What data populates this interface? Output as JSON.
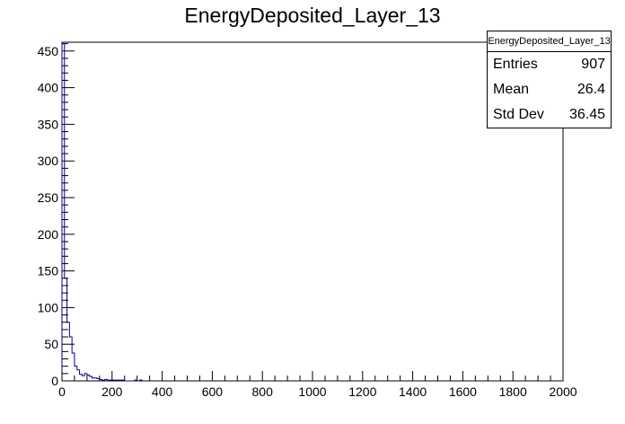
{
  "chart_data": {
    "type": "bar",
    "title": "EnergyDeposited_Layer_13",
    "xlabel": "",
    "ylabel": "",
    "xlim": [
      0,
      2000
    ],
    "ylim": [
      0,
      462
    ],
    "x_ticks": [
      "0",
      "200",
      "400",
      "600",
      "800",
      "1000",
      "1200",
      "1400",
      "1600",
      "1800",
      "2000"
    ],
    "y_ticks": [
      "0",
      "50",
      "100",
      "150",
      "200",
      "250",
      "300",
      "350",
      "400",
      "450"
    ],
    "bin_width": 10,
    "series": [
      {
        "values": [
          460,
          140,
          80,
          60,
          38,
          20,
          15,
          9,
          7,
          10,
          8,
          6,
          4,
          4,
          3,
          2,
          1,
          2,
          1,
          1,
          1,
          1,
          1,
          1,
          1,
          0,
          0,
          0,
          0,
          1,
          0,
          1
        ]
      }
    ],
    "line_color": "#000099",
    "stats": {
      "name": "EnergyDeposited_Layer_13",
      "rows": [
        {
          "label": "Entries",
          "value": "907"
        },
        {
          "label": "Mean",
          "value": "26.4"
        },
        {
          "label": "Std Dev",
          "value": "36.45"
        }
      ]
    }
  }
}
